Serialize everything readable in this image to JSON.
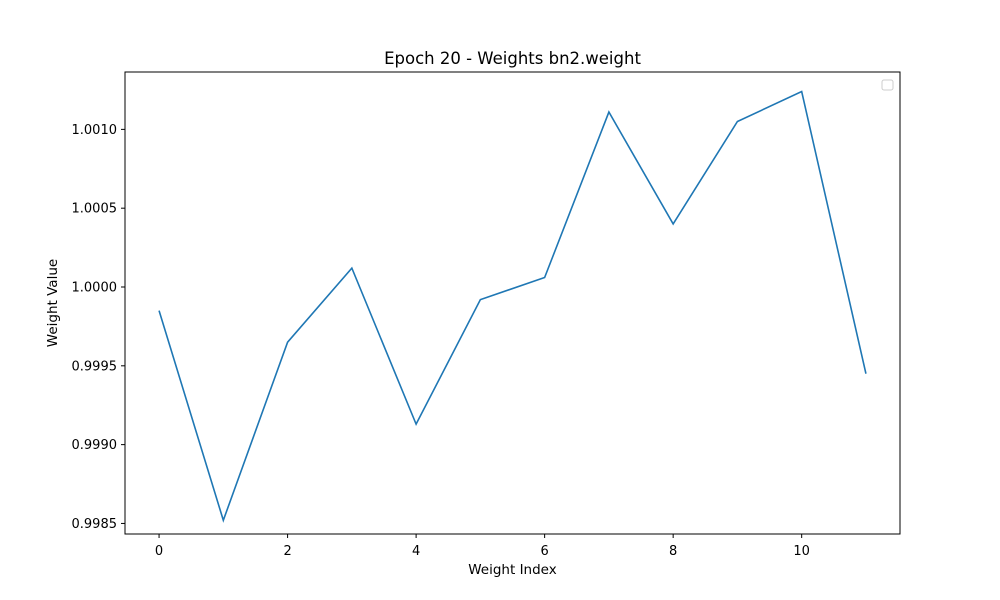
{
  "chart_data": {
    "type": "line",
    "title": "Epoch 20 - Weights bn2.weight",
    "xlabel": "Weight Index",
    "ylabel": "Weight Value",
    "x": [
      0,
      1,
      2,
      3,
      4,
      5,
      6,
      7,
      8,
      9,
      10,
      11
    ],
    "series": [
      {
        "values": [
          0.99985,
          0.99852,
          0.99965,
          1.00012,
          0.99913,
          0.99992,
          1.00006,
          1.00111,
          1.0004,
          1.00105,
          1.00124,
          0.99945
        ],
        "color": "#1f77b4"
      }
    ],
    "xlim": [
      -0.53,
      11.53
    ],
    "ylim": [
      0.998433,
      1.001364
    ],
    "xticks": [
      0,
      2,
      4,
      6,
      8,
      10
    ],
    "xtick_labels": [
      "0",
      "2",
      "4",
      "6",
      "8",
      "10"
    ],
    "yticks": [
      0.9985,
      0.999,
      0.9995,
      1.0,
      1.0005,
      1.001
    ],
    "ytick_labels": [
      "0.9985",
      "0.9990",
      "0.9995",
      "1.0000",
      "1.0005",
      "1.0010"
    ],
    "grid": false,
    "legend": {
      "placement": "top-right",
      "entries": []
    }
  }
}
